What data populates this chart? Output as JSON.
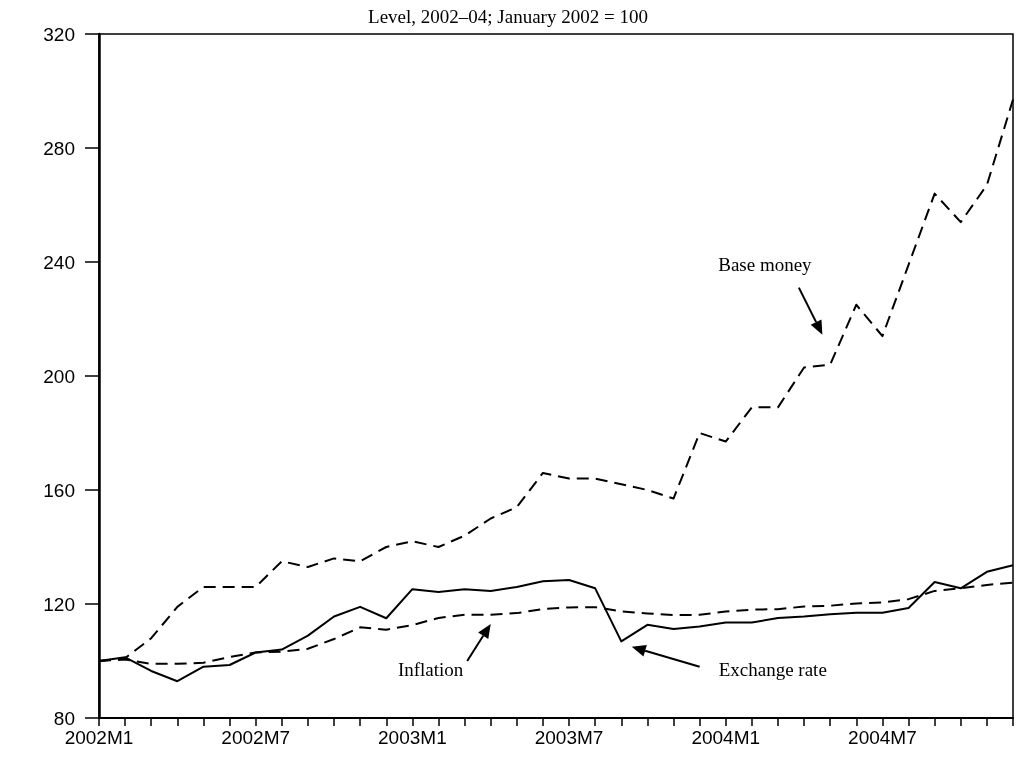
{
  "chart_data": {
    "type": "line",
    "title": "Level, 2002–04; January 2002 = 100",
    "categories": [
      "2002M1",
      null,
      null,
      null,
      null,
      null,
      "2002M7",
      null,
      null,
      null,
      null,
      null,
      "2003M1",
      null,
      null,
      null,
      null,
      null,
      "2003M7",
      null,
      null,
      null,
      null,
      null,
      "2004M1",
      null,
      null,
      null,
      null,
      null,
      "2004M7",
      null,
      null,
      null,
      null,
      null
    ],
    "series": [
      {
        "name": "Base money",
        "color": "#000000",
        "line_style": "dashed",
        "values": [
          100,
          101,
          108,
          119,
          126,
          126,
          126,
          135,
          133,
          136,
          135,
          140,
          142,
          140,
          144,
          150,
          154,
          166,
          164,
          164,
          162,
          160,
          157,
          180,
          177,
          189,
          189,
          203,
          204,
          225,
          214,
          239,
          264,
          254,
          267,
          297
        ]
      },
      {
        "name": "Inflation",
        "color": "#000000",
        "line_style": "dashed",
        "values": [
          100,
          100.5,
          99,
          99,
          99.4,
          101.4,
          103,
          103.3,
          104.3,
          107.7,
          111.8,
          111,
          112.6,
          115.1,
          116.2,
          116.2,
          116.8,
          118.2,
          118.8,
          118.9,
          117.4,
          116.7,
          116.1,
          116.2,
          117.4,
          118,
          118.2,
          119.1,
          119.4,
          120.2,
          120.5,
          121.7,
          124.6,
          125.5,
          126.7,
          127.5
        ]
      },
      {
        "name": "Exchange rate",
        "color": "#000000",
        "line_style": "solid",
        "values": [
          100,
          101.3,
          96.5,
          92.9,
          98,
          98.6,
          103,
          104,
          108.9,
          115.6,
          119,
          115,
          125.2,
          124.2,
          125.2,
          124.6,
          126,
          128,
          128.4,
          125.5,
          106.9,
          112.7,
          111.2,
          112.1,
          113.5,
          113.5,
          115.1,
          115.6,
          116.4,
          116.9,
          116.9,
          118.6,
          127.7,
          125.5,
          131.3,
          133.6
        ]
      }
    ],
    "ylim": [
      80,
      320
    ],
    "yticks": [
      80,
      120,
      160,
      200,
      240,
      280,
      320
    ],
    "grid": false,
    "marker": "none"
  }
}
